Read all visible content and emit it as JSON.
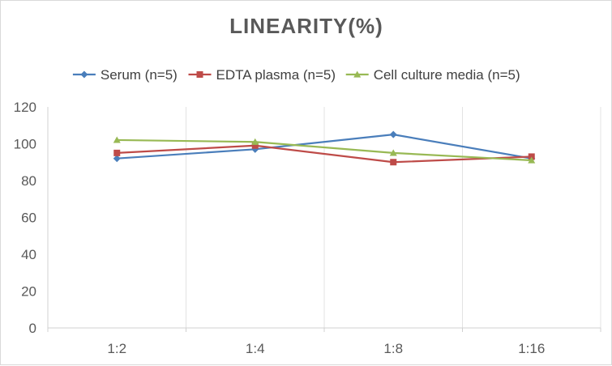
{
  "chart_data": {
    "type": "line",
    "title": "LINEARITY(%)",
    "xlabel": "",
    "ylabel": "",
    "categories": [
      "1:2",
      "1:4",
      "1:8",
      "1:16"
    ],
    "ylim": [
      0,
      120
    ],
    "yticks": [
      "0",
      "20",
      "40",
      "60",
      "80",
      "100",
      "120"
    ],
    "grid": "vertical",
    "legend_position": "top",
    "series": [
      {
        "name": "Serum (n=5)",
        "values": [
          92,
          97,
          105,
          92
        ],
        "color": "#4a7ebb",
        "marker": "diamond"
      },
      {
        "name": "EDTA plasma (n=5)",
        "values": [
          95,
          99,
          90,
          93
        ],
        "color": "#be4b48",
        "marker": "square"
      },
      {
        "name": "Cell culture media (n=5)",
        "values": [
          102,
          101,
          95,
          91
        ],
        "color": "#98b954",
        "marker": "triangle"
      }
    ]
  }
}
